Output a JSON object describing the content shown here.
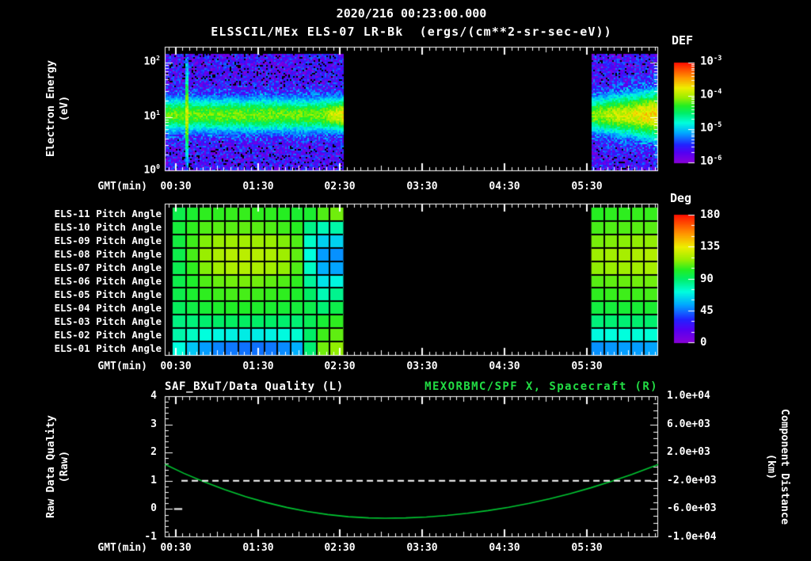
{
  "window": {
    "bg": "#000000",
    "title_line1": "2020/216 00:23:00.000",
    "title_line2": "ELSSCIL/MEx ELS-07 LR-Bk  (ergs/(cm**2-sr-sec-eV))"
  },
  "colormap_stops": [
    [
      0.0,
      "#8800d8"
    ],
    [
      0.1,
      "#5500f2"
    ],
    [
      0.18,
      "#2222ff"
    ],
    [
      0.3,
      "#00aaff"
    ],
    [
      0.4,
      "#00ffdd"
    ],
    [
      0.5,
      "#00ee66"
    ],
    [
      0.57,
      "#22ee22"
    ],
    [
      0.65,
      "#99ee00"
    ],
    [
      0.75,
      "#eeee00"
    ],
    [
      0.85,
      "#ff9900"
    ],
    [
      1.0,
      "#ff1100"
    ]
  ],
  "x_axis": {
    "label": "GMT(min)",
    "tick_labels": [
      "00:30",
      "01:30",
      "02:30",
      "03:30",
      "04:30",
      "05:30"
    ],
    "tick_hours": [
      0.5,
      1.5,
      2.5,
      3.5,
      4.5,
      5.5
    ],
    "range_hours": [
      0.367,
      6.37
    ],
    "minor_step_minutes": 5
  },
  "chart_data": [
    {
      "type": "heatmap",
      "name": "electron-energy-spectrogram",
      "title": "ELSSCIL/MEx ELS-07 LR-Bk  (ergs/(cm**2-sr-sec-eV))",
      "xlabel": "GMT(min)",
      "ylabel_line1": "Electron Energy",
      "ylabel_line2": "(eV)",
      "y_tick_base": "10",
      "y_tick_exponents": [
        2,
        1,
        0
      ],
      "y_log10_ev_range": [
        0,
        2.16
      ],
      "segments_hours": [
        [
          0.367,
          2.535
        ],
        [
          5.557,
          6.37
        ]
      ],
      "band_model": {
        "center_log10_ev": 1.05,
        "halfwidth_log10": 0.3,
        "peak_log10_flux": -4.15,
        "background_log10_flux": -5.65,
        "noise_amp_log10": 0.38,
        "spike_hour": 0.62,
        "segment_end_brighten_log10": 0.45
      },
      "colorbar": {
        "label": "DEF",
        "tick_base": "10",
        "tick_exponents": [
          -3,
          -4,
          -5,
          -6
        ],
        "flux_log10_range": [
          -6,
          -3
        ]
      }
    },
    {
      "type": "heatmap",
      "name": "pitch-angle-grid",
      "xlabel": "GMT(min)",
      "unit": "Deg",
      "value_range_deg": [
        0,
        180
      ],
      "row_labels": [
        "ELS-11 Pitch Angle",
        "ELS-10 Pitch Angle",
        "ELS-09 Pitch Angle",
        "ELS-08 Pitch Angle",
        "ELS-07 Pitch Angle",
        "ELS-06 Pitch Angle",
        "ELS-05 Pitch Angle",
        "ELS-04 Pitch Angle",
        "ELS-03 Pitch Angle",
        "ELS-02 Pitch Angle",
        "ELS-01 Pitch Angle"
      ],
      "colorbar": {
        "label": "Deg",
        "tick_labels": [
          "180",
          "135",
          "90",
          "45",
          "0"
        ],
        "tick_values": [
          180,
          135,
          90,
          45,
          0
        ]
      },
      "segments": [
        {
          "hours": [
            0.463,
            2.535
          ],
          "columns": 13,
          "pitch_deg_rows": [
            [
              95,
              100,
              104,
              104,
              105,
              105,
              104,
              104,
              103,
              100,
              100,
              108,
              112
            ],
            [
              98,
              104,
              108,
              109,
              109,
              110,
              109,
              108,
              106,
              103,
              85,
              78,
              80
            ],
            [
              97,
              106,
              114,
              117,
              118,
              119,
              118,
              117,
              114,
              108,
              75,
              62,
              62
            ],
            [
              95,
              107,
              117,
              121,
              123,
              124,
              123,
              121,
              118,
              110,
              72,
              52,
              50
            ],
            [
              94,
              104,
              114,
              119,
              121,
              122,
              121,
              119,
              116,
              108,
              76,
              55,
              53
            ],
            [
              95,
              101,
              108,
              111,
              112,
              113,
              112,
              110,
              108,
              104,
              82,
              66,
              70
            ],
            [
              95,
              100,
              104,
              106,
              107,
              107,
              106,
              105,
              104,
              101,
              90,
              78,
              84
            ],
            [
              92,
              96,
              99,
              101,
              102,
              102,
              101,
              100,
              99,
              98,
              95,
              88,
              95
            ],
            [
              86,
              87,
              89,
              90,
              91,
              91,
              90,
              90,
              89,
              88,
              93,
              99,
              104
            ],
            [
              80,
              76,
              72,
              70,
              69,
              68,
              68,
              69,
              71,
              74,
              90,
              106,
              110
            ],
            [
              72,
              60,
              52,
              48,
              46,
              45,
              45,
              46,
              49,
              55,
              88,
              112,
              116
            ]
          ]
        },
        {
          "hours": [
            5.557,
            6.36
          ],
          "columns": 5,
          "pitch_deg_rows": [
            [
              103,
              104,
              104,
              105,
              105
            ],
            [
              107,
              108,
              108,
              109,
              109
            ],
            [
              113,
              114,
              115,
              116,
              116
            ],
            [
              118,
              119,
              120,
              121,
              122
            ],
            [
              116,
              117,
              118,
              119,
              120
            ],
            [
              109,
              110,
              111,
              112,
              112
            ],
            [
              104,
              105,
              106,
              106,
              107
            ],
            [
              97,
              98,
              99,
              99,
              100
            ],
            [
              87,
              88,
              88,
              89,
              89
            ],
            [
              71,
              72,
              72,
              73,
              73
            ],
            [
              50,
              51,
              52,
              52,
              53
            ]
          ]
        }
      ]
    },
    {
      "type": "line",
      "name": "quality-and-distance",
      "title_left": "SAF_BXuT/Data Quality (L)",
      "title_right": "MEXORBMC/SPF X, Spacecraft (R)",
      "title_right_color": "#22dd44",
      "xlabel": "GMT(min)",
      "ylabel_left_line1": "Raw Data Quality",
      "ylabel_left_line2": "(Raw)",
      "ylabel_right_line1": "Component Distance",
      "ylabel_right_line2": "(km)",
      "ylim_left": [
        -1,
        4
      ],
      "y_tick_labels_left": [
        "4",
        "3",
        "2",
        "1",
        "0",
        "-1"
      ],
      "y_tick_values_left": [
        4,
        3,
        2,
        1,
        0,
        -1
      ],
      "ylim_right": [
        -10000,
        10000
      ],
      "y_tick_labels_right": [
        "1.0e+04",
        "6.0e+03",
        "2.0e+03",
        "-2.0e+03",
        "-6.0e+03",
        "-1.0e+04"
      ],
      "y_tick_values_right": [
        10000,
        6000,
        2000,
        -2000,
        -6000,
        -10000
      ],
      "series": [
        {
          "name": "MEXORBMC/SPF X, Spacecraft (R)",
          "axis": "right",
          "color": "#00c832",
          "style": "solid",
          "points_hours_km": [
            [
              0.37,
              330
            ],
            [
              0.6,
              -940
            ],
            [
              0.85,
              -2170
            ],
            [
              1.1,
              -3270
            ],
            [
              1.35,
              -4240
            ],
            [
              1.6,
              -5070
            ],
            [
              1.85,
              -5770
            ],
            [
              2.1,
              -6340
            ],
            [
              2.35,
              -6780
            ],
            [
              2.6,
              -7090
            ],
            [
              2.85,
              -7260
            ],
            [
              3.05,
              -7300
            ],
            [
              3.3,
              -7260
            ],
            [
              3.55,
              -7130
            ],
            [
              3.8,
              -6910
            ],
            [
              4.05,
              -6610
            ],
            [
              4.3,
              -6220
            ],
            [
              4.55,
              -5750
            ],
            [
              4.8,
              -5190
            ],
            [
              5.05,
              -4540
            ],
            [
              5.3,
              -3810
            ],
            [
              5.55,
              -2990
            ],
            [
              5.8,
              -2080
            ],
            [
              6.05,
              -1090
            ],
            [
              6.3,
              -10
            ],
            [
              6.37,
              310
            ]
          ]
        },
        {
          "name": "SAF_BXuT/Data Quality (L)",
          "axis": "left",
          "color": "#ffffff",
          "style": "dashed",
          "points_hours_value": [
            [
              0.57,
              1
            ],
            [
              6.37,
              1
            ]
          ]
        },
        {
          "name": "SAF_BXuT/Data Quality zero segment",
          "axis": "left",
          "color": "#ffffff",
          "style": "solid",
          "points_hours_value": [
            [
              0.48,
              0
            ],
            [
              0.58,
              0
            ]
          ]
        }
      ]
    }
  ]
}
